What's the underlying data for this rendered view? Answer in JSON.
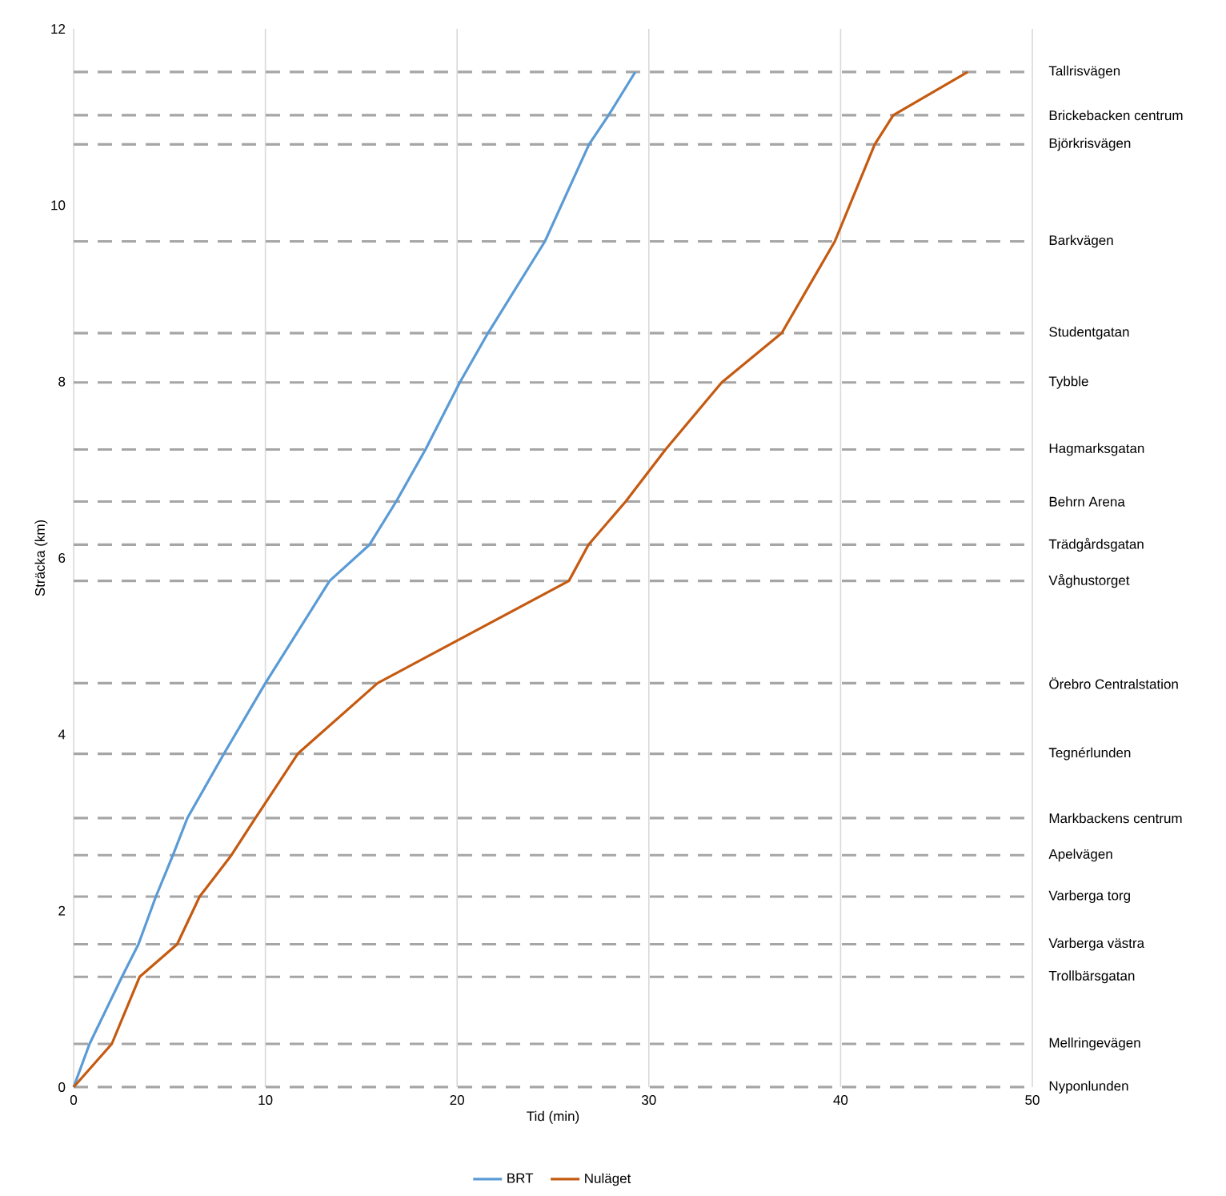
{
  "chart_data": {
    "type": "line",
    "xlabel": "Tid (min)",
    "ylabel": "Sträcka (km)",
    "xlim": [
      0,
      50
    ],
    "ylim": [
      0,
      12
    ],
    "xticks": [
      0,
      10,
      20,
      30,
      40,
      50
    ],
    "yticks": [
      0,
      2,
      4,
      6,
      8,
      10,
      12
    ],
    "grid": "x",
    "legend": "bottom",
    "marker": "none",
    "line_style": "solid",
    "series": [
      {
        "name": "BRT",
        "color": "#5b9bd5",
        "x": [
          0,
          0.83,
          2.52,
          3.38,
          4.29,
          5.18,
          5.93,
          7.84,
          10.0,
          13.35,
          15.43,
          16.82,
          18.35,
          20.14,
          21.61,
          24.58,
          26.88,
          27.9,
          29.29
        ],
        "values": [
          0,
          0.49,
          1.25,
          1.62,
          2.16,
          2.63,
          3.05,
          3.78,
          4.58,
          5.74,
          6.15,
          6.64,
          7.23,
          7.99,
          8.55,
          9.59,
          10.69,
          11.02,
          11.51
        ]
      },
      {
        "name": "Nuläget",
        "color": "#c55a11",
        "x": [
          0,
          1.99,
          3.44,
          5.4,
          6.57,
          8.23,
          9.48,
          11.69,
          15.85,
          25.83,
          26.85,
          28.79,
          30.87,
          33.8,
          36.93,
          39.7,
          41.78,
          42.75,
          46.63
        ],
        "values": [
          0,
          0.49,
          1.25,
          1.62,
          2.16,
          2.63,
          3.05,
          3.78,
          4.58,
          5.74,
          6.15,
          6.64,
          7.23,
          7.99,
          8.55,
          9.59,
          10.69,
          11.02,
          11.51
        ]
      }
    ],
    "ref_lines": [
      {
        "axis": "y",
        "value": 0,
        "label": "Nyponlunden",
        "color": "#a6a6a6",
        "line_style": "dashed"
      },
      {
        "axis": "y",
        "value": 0.49,
        "label": "Mellringevägen",
        "color": "#a6a6a6",
        "line_style": "dashed"
      },
      {
        "axis": "y",
        "value": 1.25,
        "label": "Trollbärsgatan",
        "color": "#a6a6a6",
        "line_style": "dashed"
      },
      {
        "axis": "y",
        "value": 1.62,
        "label": "Varberga västra",
        "color": "#a6a6a6",
        "line_style": "dashed"
      },
      {
        "axis": "y",
        "value": 2.16,
        "label": "Varberga torg",
        "color": "#a6a6a6",
        "line_style": "dashed"
      },
      {
        "axis": "y",
        "value": 2.63,
        "label": "Apelvägen",
        "color": "#a6a6a6",
        "line_style": "dashed"
      },
      {
        "axis": "y",
        "value": 3.05,
        "label": "Markbackens centrum",
        "color": "#a6a6a6",
        "line_style": "dashed"
      },
      {
        "axis": "y",
        "value": 3.78,
        "label": "Tegnérlunden",
        "color": "#a6a6a6",
        "line_style": "dashed"
      },
      {
        "axis": "y",
        "value": 4.58,
        "label": "Örebro Centralstation",
        "color": "#a6a6a6",
        "line_style": "dashed"
      },
      {
        "axis": "y",
        "value": 5.74,
        "label": "Våghustorget",
        "color": "#a6a6a6",
        "line_style": "dashed"
      },
      {
        "axis": "y",
        "value": 6.15,
        "label": "Trädgårdsgatan",
        "color": "#a6a6a6",
        "line_style": "dashed"
      },
      {
        "axis": "y",
        "value": 6.64,
        "label": "Behrn Arena",
        "color": "#a6a6a6",
        "line_style": "dashed"
      },
      {
        "axis": "y",
        "value": 7.23,
        "label": "Hagmarksgatan",
        "color": "#a6a6a6",
        "line_style": "dashed"
      },
      {
        "axis": "y",
        "value": 7.99,
        "label": "Tybble",
        "color": "#a6a6a6",
        "line_style": "dashed"
      },
      {
        "axis": "y",
        "value": 8.55,
        "label": "Studentgatan",
        "color": "#a6a6a6",
        "line_style": "dashed"
      },
      {
        "axis": "y",
        "value": 9.59,
        "label": "Barkvägen",
        "color": "#a6a6a6",
        "line_style": "dashed"
      },
      {
        "axis": "y",
        "value": 10.69,
        "label": "Björkrisvägen",
        "color": "#a6a6a6",
        "line_style": "dashed"
      },
      {
        "axis": "y",
        "value": 11.02,
        "label": "Brickebacken centrum",
        "color": "#a6a6a6",
        "line_style": "dashed"
      },
      {
        "axis": "y",
        "value": 11.51,
        "label": "Tallrisvägen",
        "color": "#a6a6a6",
        "line_style": "dashed"
      }
    ]
  }
}
